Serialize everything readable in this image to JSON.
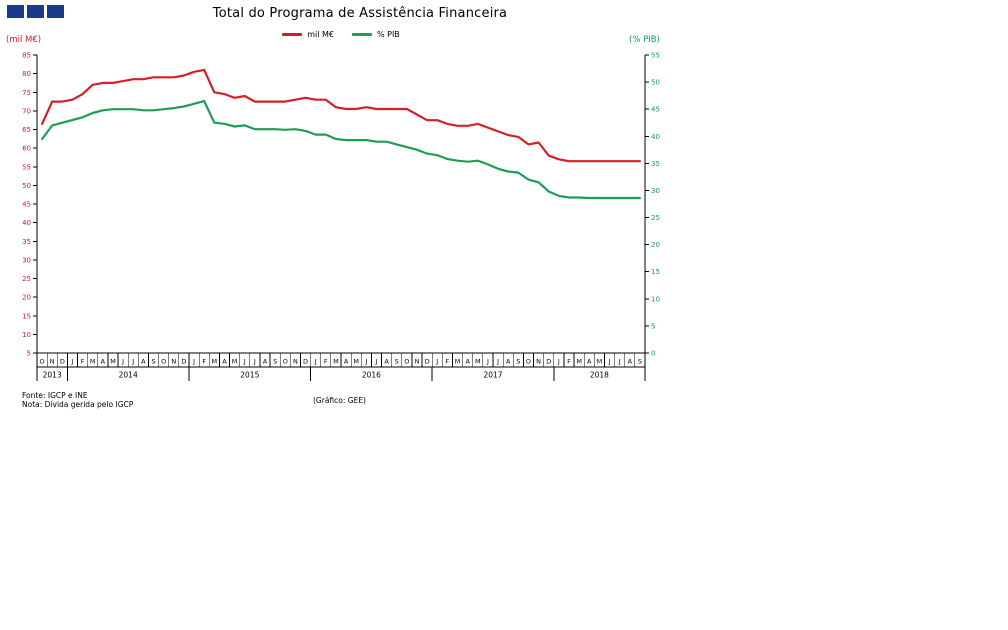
{
  "logo": {
    "color": "#1b3a8c"
  },
  "title": "Total do Programa de Assistência Financeira",
  "legend": [
    {
      "label": "mil M€",
      "color": "#d02028"
    },
    {
      "label": "% PIB",
      "color": "#1d9d57"
    }
  ],
  "left_axis_unit": "(mil M€)",
  "right_axis_unit": "(% PIB)",
  "footer": {
    "fonte": "Fonte: IGCP e INE",
    "nota": "Nota: Dívida gerida pelo IGCP",
    "grafico": "(Gráfico: GEE)"
  },
  "chart_data": {
    "type": "line",
    "x_months": [
      "O",
      "N",
      "D",
      "J",
      "F",
      "M",
      "A",
      "M",
      "J",
      "J",
      "A",
      "S",
      "O",
      "N",
      "D",
      "J",
      "F",
      "M",
      "A",
      "M",
      "J",
      "J",
      "A",
      "S",
      "O",
      "N",
      "D",
      "J",
      "F",
      "M",
      "A",
      "M",
      "J",
      "J",
      "A",
      "S",
      "O",
      "N",
      "D",
      "J",
      "F",
      "M",
      "A",
      "M",
      "J",
      "J",
      "A",
      "S",
      "O",
      "N",
      "D",
      "J",
      "F",
      "M",
      "A",
      "M",
      "J",
      "J",
      "A",
      "S"
    ],
    "years": [
      {
        "label": "2013",
        "months": 3
      },
      {
        "label": "2014",
        "months": 12
      },
      {
        "label": "2015",
        "months": 12
      },
      {
        "label": "2016",
        "months": 12
      },
      {
        "label": "2017",
        "months": 12
      },
      {
        "label": "2018",
        "months": 9
      }
    ],
    "left_axis": {
      "min": 5,
      "max": 85,
      "step": 5,
      "color": "#d02028"
    },
    "right_axis": {
      "min": 0,
      "max": 55,
      "step": 5,
      "color": "#1d9d57"
    },
    "legend_position": "top-center",
    "grid": false,
    "series": [
      {
        "name": "mil M€",
        "axis": "left",
        "color": "#d02028",
        "values": [
          66.5,
          72.5,
          72.5,
          73,
          74.5,
          77,
          77.5,
          77.5,
          78,
          78.5,
          78.5,
          79,
          79,
          79,
          79.5,
          80.5,
          81,
          75,
          74.5,
          73.5,
          74,
          72.5,
          72.5,
          72.5,
          72.5,
          73,
          73.5,
          73,
          73,
          71,
          70.5,
          70.5,
          71,
          70.5,
          70.5,
          70.5,
          70.5,
          69,
          67.5,
          67.5,
          66.5,
          66,
          66,
          66.5,
          65.5,
          64.5,
          63.5,
          63,
          61,
          61.5,
          58,
          57,
          56.5,
          56.5,
          56.5,
          56.5,
          56.5,
          56.5,
          56.5,
          56.5
        ]
      },
      {
        "name": "% PIB",
        "axis": "right",
        "color": "#1d9d57",
        "values": [
          39.5,
          42,
          42.5,
          43,
          43.5,
          44.3,
          44.8,
          45,
          45,
          45,
          44.8,
          44.8,
          45,
          45.2,
          45.5,
          46,
          46.5,
          42.5,
          42.3,
          41.8,
          42,
          41.3,
          41.3,
          41.3,
          41.2,
          41.3,
          41,
          40.3,
          40.3,
          39.5,
          39.3,
          39.3,
          39.3,
          39,
          39,
          38.5,
          38,
          37.5,
          36.8,
          36.5,
          35.8,
          35.5,
          35.3,
          35.5,
          34.8,
          34,
          33.5,
          33.3,
          32,
          31.5,
          29.8,
          29,
          28.7,
          28.7,
          28.6,
          28.6,
          28.6,
          28.6,
          28.6,
          28.6
        ]
      }
    ]
  }
}
